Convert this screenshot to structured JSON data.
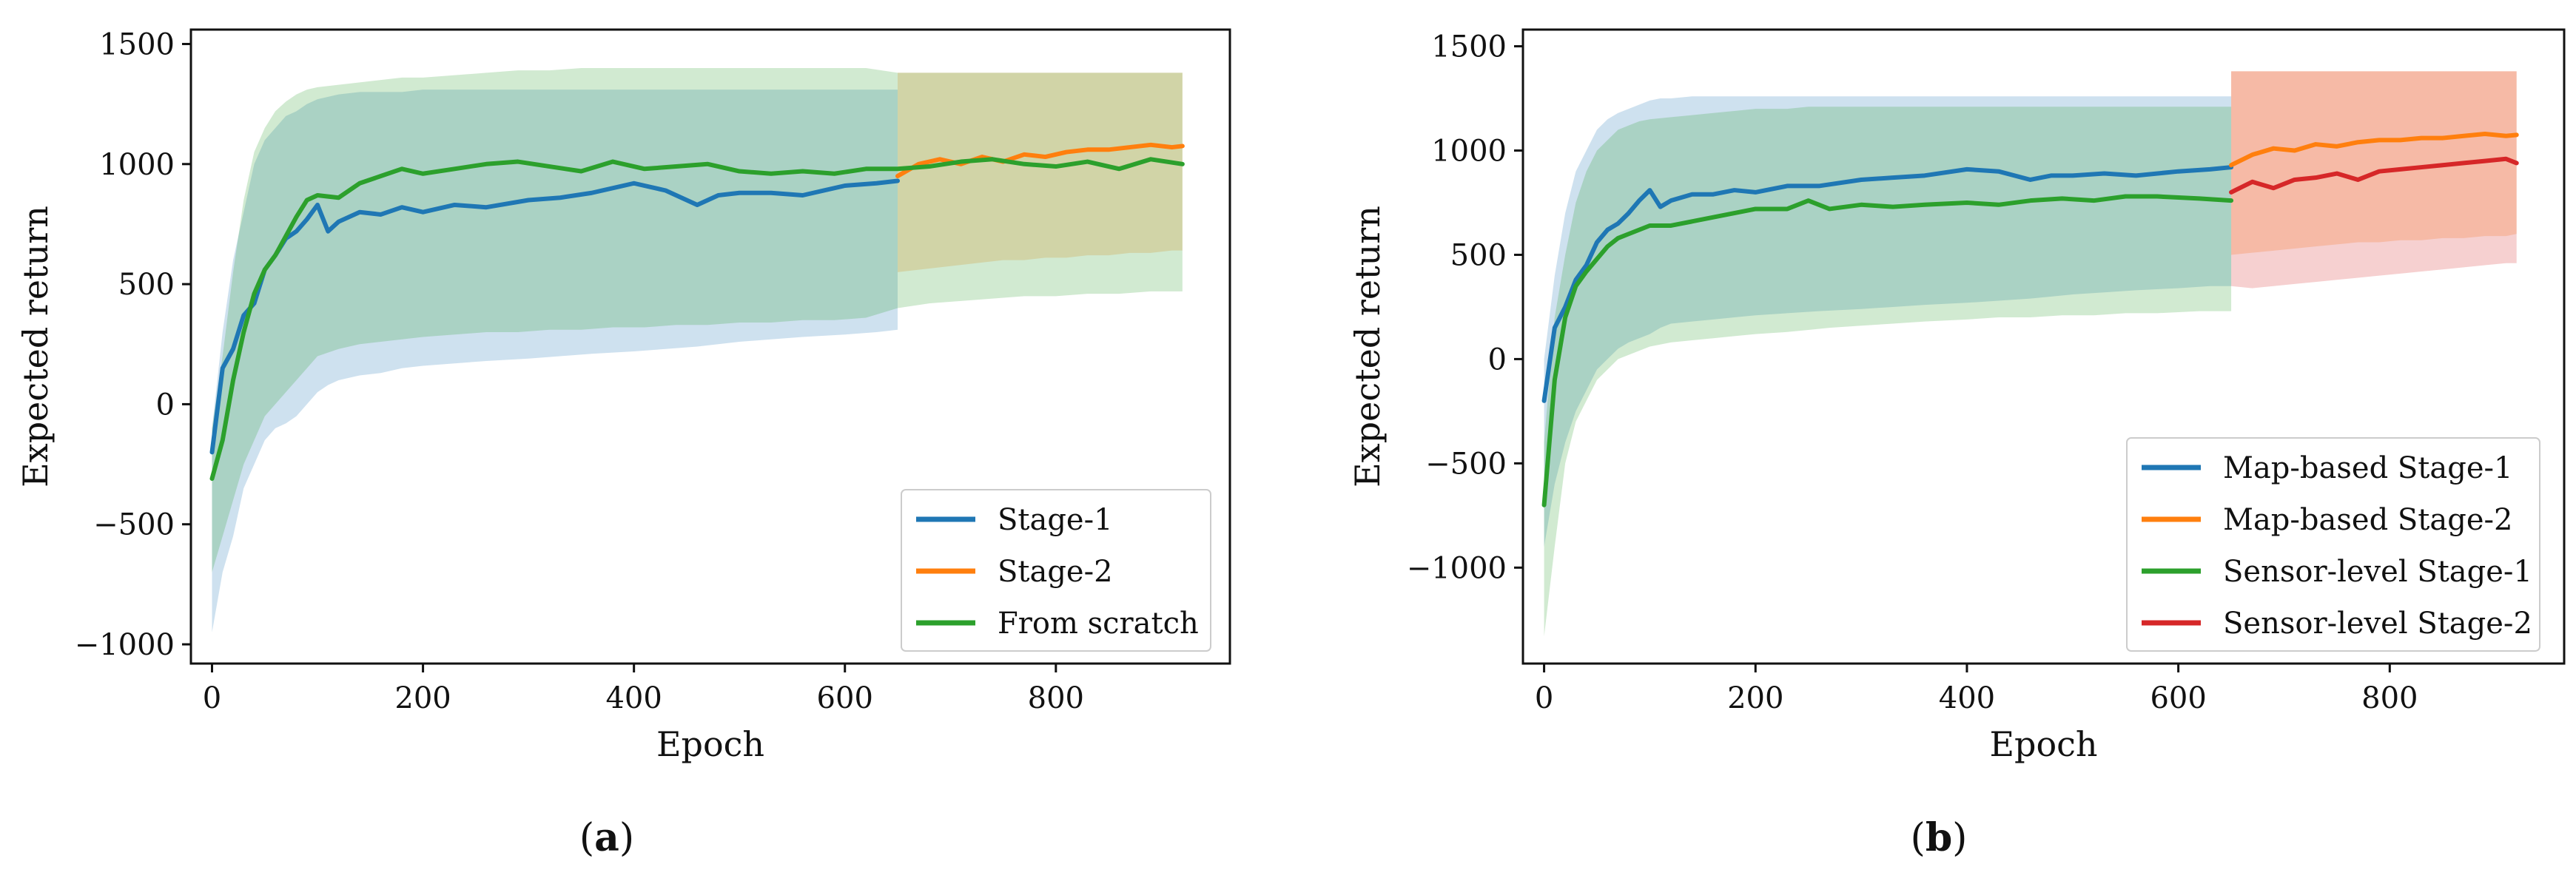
{
  "figure": {
    "panels": [
      {
        "caption_open": "(",
        "caption_letter": "a",
        "caption_close": ")"
      },
      {
        "caption_open": "(",
        "caption_letter": "b",
        "caption_close": ")"
      }
    ]
  },
  "chart_data": [
    {
      "type": "line",
      "title": "",
      "xlabel": "Epoch",
      "ylabel": "Expected return",
      "xlim": [
        -20,
        965
      ],
      "ylim": [
        -1080,
        1560
      ],
      "xticks": [
        0,
        200,
        400,
        600,
        800
      ],
      "xtick_labels": [
        "0",
        "200",
        "400",
        "600",
        "800"
      ],
      "yticks": [
        -1000,
        -500,
        0,
        500,
        1000,
        1500
      ],
      "ytick_labels": [
        "−1000",
        "−500",
        "0",
        "500",
        "1000",
        "1500"
      ],
      "legend_position": "lower right",
      "series": [
        {
          "name": "Stage-1",
          "color": "#1f77b4",
          "x": [
            0,
            10,
            20,
            30,
            40,
            50,
            60,
            70,
            80,
            90,
            100,
            110,
            120,
            140,
            160,
            180,
            200,
            230,
            260,
            300,
            330,
            360,
            400,
            430,
            460,
            480,
            500,
            530,
            560,
            600,
            630,
            650
          ],
          "values": [
            -200,
            150,
            230,
            370,
            420,
            560,
            620,
            690,
            720,
            770,
            830,
            720,
            760,
            800,
            790,
            820,
            800,
            830,
            820,
            850,
            860,
            880,
            920,
            890,
            830,
            870,
            880,
            880,
            870,
            910,
            920,
            930
          ],
          "band_lower": [
            -950,
            -700,
            -550,
            -350,
            -250,
            -150,
            -100,
            -80,
            -50,
            0,
            50,
            80,
            100,
            120,
            130,
            150,
            160,
            170,
            180,
            190,
            200,
            210,
            220,
            230,
            240,
            250,
            260,
            270,
            280,
            290,
            300,
            310
          ],
          "band_upper": [
            -100,
            300,
            600,
            800,
            1000,
            1100,
            1150,
            1200,
            1220,
            1250,
            1270,
            1280,
            1290,
            1300,
            1300,
            1300,
            1310,
            1310,
            1310,
            1310,
            1310,
            1310,
            1310,
            1310,
            1310,
            1310,
            1310,
            1310,
            1310,
            1310,
            1310,
            1310
          ]
        },
        {
          "name": "Stage-2",
          "color": "#ff7f0e",
          "x": [
            650,
            670,
            690,
            710,
            730,
            750,
            770,
            790,
            810,
            830,
            850,
            870,
            890,
            910,
            920
          ],
          "values": [
            950,
            1000,
            1020,
            1000,
            1030,
            1010,
            1040,
            1030,
            1050,
            1060,
            1060,
            1070,
            1080,
            1070,
            1075
          ],
          "band_lower": [
            550,
            560,
            570,
            580,
            590,
            600,
            600,
            610,
            610,
            620,
            620,
            630,
            630,
            640,
            640
          ],
          "band_upper": [
            1380,
            1380,
            1380,
            1380,
            1380,
            1380,
            1380,
            1380,
            1380,
            1380,
            1380,
            1380,
            1380,
            1380,
            1380
          ]
        },
        {
          "name": "From scratch",
          "color": "#2ca02c",
          "x": [
            0,
            10,
            20,
            30,
            40,
            50,
            60,
            70,
            80,
            90,
            100,
            120,
            140,
            160,
            180,
            200,
            230,
            260,
            290,
            320,
            350,
            380,
            410,
            440,
            470,
            500,
            530,
            560,
            590,
            620,
            650,
            680,
            710,
            740,
            770,
            800,
            830,
            860,
            890,
            920
          ],
          "values": [
            -310,
            -150,
            100,
            300,
            460,
            560,
            620,
            700,
            780,
            850,
            870,
            860,
            920,
            950,
            980,
            960,
            980,
            1000,
            1010,
            990,
            970,
            1010,
            980,
            990,
            1000,
            970,
            960,
            970,
            960,
            980,
            980,
            990,
            1010,
            1020,
            1000,
            990,
            1010,
            980,
            1020,
            1000
          ],
          "band_lower": [
            -700,
            -550,
            -400,
            -250,
            -150,
            -50,
            0,
            50,
            100,
            150,
            200,
            230,
            250,
            260,
            270,
            280,
            290,
            300,
            300,
            310,
            310,
            320,
            320,
            330,
            330,
            340,
            340,
            350,
            350,
            360,
            400,
            420,
            430,
            440,
            450,
            450,
            460,
            460,
            470,
            470
          ],
          "band_upper": [
            -100,
            200,
            550,
            850,
            1050,
            1150,
            1220,
            1260,
            1290,
            1310,
            1320,
            1330,
            1340,
            1350,
            1360,
            1360,
            1370,
            1380,
            1390,
            1390,
            1400,
            1400,
            1400,
            1400,
            1400,
            1400,
            1400,
            1400,
            1400,
            1400,
            1380,
            1380,
            1380,
            1380,
            1380,
            1380,
            1380,
            1380,
            1380,
            1380
          ]
        }
      ]
    },
    {
      "type": "line",
      "title": "",
      "xlabel": "Epoch",
      "ylabel": "Expected return",
      "xlim": [
        -20,
        965
      ],
      "ylim": [
        -1460,
        1580
      ],
      "xticks": [
        0,
        200,
        400,
        600,
        800
      ],
      "xtick_labels": [
        "0",
        "200",
        "400",
        "600",
        "800"
      ],
      "yticks": [
        -1000,
        -500,
        0,
        500,
        1000,
        1500
      ],
      "ytick_labels": [
        "−1000",
        "−500",
        "0",
        "500",
        "1000",
        "1500"
      ],
      "legend_position": "lower right",
      "series": [
        {
          "name": "Map-based Stage-1",
          "color": "#1f77b4",
          "x": [
            0,
            10,
            20,
            30,
            40,
            50,
            60,
            70,
            80,
            90,
            100,
            110,
            120,
            140,
            160,
            180,
            200,
            230,
            260,
            300,
            330,
            360,
            400,
            430,
            460,
            480,
            500,
            530,
            560,
            600,
            630,
            650
          ],
          "values": [
            -200,
            150,
            250,
            380,
            450,
            560,
            620,
            650,
            700,
            760,
            810,
            730,
            760,
            790,
            790,
            810,
            800,
            830,
            830,
            860,
            870,
            880,
            910,
            900,
            860,
            880,
            880,
            890,
            880,
            900,
            910,
            920
          ],
          "band_lower": [
            -900,
            -600,
            -400,
            -250,
            -150,
            -50,
            0,
            50,
            80,
            100,
            120,
            150,
            170,
            180,
            190,
            200,
            210,
            220,
            230,
            240,
            250,
            260,
            270,
            280,
            290,
            300,
            310,
            320,
            330,
            340,
            350,
            350
          ],
          "band_upper": [
            0,
            400,
            700,
            900,
            1000,
            1100,
            1150,
            1180,
            1200,
            1220,
            1240,
            1250,
            1250,
            1260,
            1260,
            1260,
            1260,
            1260,
            1260,
            1260,
            1260,
            1260,
            1260,
            1260,
            1260,
            1260,
            1260,
            1260,
            1260,
            1260,
            1260,
            1260
          ]
        },
        {
          "name": "Map-based Stage-2",
          "color": "#ff7f0e",
          "x": [
            650,
            670,
            690,
            710,
            730,
            750,
            770,
            790,
            810,
            830,
            850,
            870,
            890,
            910,
            920
          ],
          "values": [
            930,
            980,
            1010,
            1000,
            1030,
            1020,
            1040,
            1050,
            1050,
            1060,
            1060,
            1070,
            1080,
            1070,
            1075
          ],
          "band_lower": [
            500,
            510,
            520,
            530,
            540,
            550,
            560,
            560,
            570,
            570,
            580,
            580,
            590,
            590,
            600
          ],
          "band_upper": [
            1380,
            1380,
            1380,
            1380,
            1380,
            1380,
            1380,
            1380,
            1380,
            1380,
            1380,
            1380,
            1380,
            1380,
            1380
          ]
        },
        {
          "name": "Sensor-level Stage-1",
          "color": "#2ca02c",
          "x": [
            0,
            10,
            20,
            30,
            40,
            50,
            60,
            70,
            80,
            90,
            100,
            120,
            140,
            160,
            180,
            200,
            230,
            250,
            270,
            300,
            330,
            360,
            400,
            430,
            460,
            490,
            520,
            550,
            580,
            620,
            650
          ],
          "values": [
            -700,
            -100,
            200,
            350,
            420,
            480,
            540,
            580,
            600,
            620,
            640,
            640,
            660,
            680,
            700,
            720,
            720,
            760,
            720,
            740,
            730,
            740,
            750,
            740,
            760,
            770,
            760,
            780,
            780,
            770,
            760
          ],
          "band_lower": [
            -1330,
            -900,
            -500,
            -300,
            -200,
            -100,
            -50,
            0,
            20,
            40,
            60,
            80,
            90,
            100,
            110,
            120,
            130,
            140,
            150,
            160,
            170,
            180,
            190,
            200,
            200,
            210,
            210,
            220,
            220,
            230,
            230
          ],
          "band_upper": [
            -400,
            200,
            500,
            750,
            900,
            1000,
            1050,
            1100,
            1120,
            1140,
            1150,
            1160,
            1170,
            1180,
            1190,
            1200,
            1200,
            1210,
            1210,
            1210,
            1210,
            1210,
            1210,
            1210,
            1210,
            1210,
            1210,
            1210,
            1210,
            1210,
            1210
          ]
        },
        {
          "name": "Sensor-level Stage-2",
          "color": "#d62728",
          "x": [
            650,
            670,
            690,
            710,
            730,
            750,
            770,
            790,
            810,
            830,
            850,
            870,
            890,
            910,
            920
          ],
          "values": [
            800,
            850,
            820,
            860,
            870,
            890,
            860,
            900,
            910,
            920,
            930,
            940,
            950,
            960,
            940
          ],
          "band_lower": [
            350,
            340,
            350,
            360,
            370,
            380,
            390,
            400,
            410,
            420,
            430,
            440,
            450,
            460,
            460
          ],
          "band_upper": [
            1380,
            1380,
            1380,
            1380,
            1380,
            1380,
            1380,
            1380,
            1380,
            1380,
            1380,
            1380,
            1380,
            1380,
            1380
          ]
        }
      ]
    }
  ]
}
